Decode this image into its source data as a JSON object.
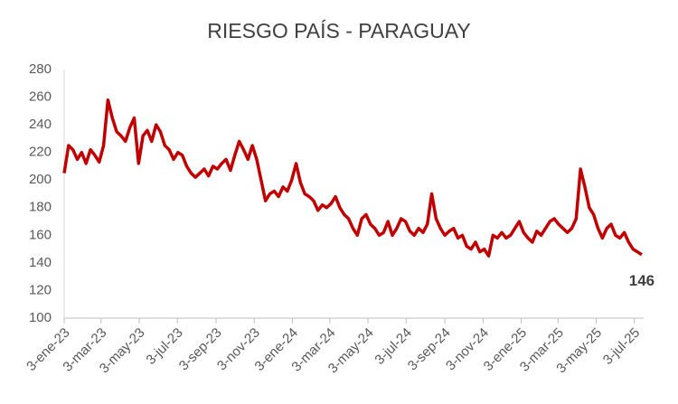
{
  "chart_data": {
    "type": "line",
    "title": "RIESGO PAÍS - PARAGUAY",
    "x": [
      "2023-01-03",
      "2023-01-10",
      "2023-01-17",
      "2023-01-24",
      "2023-01-31",
      "2023-02-07",
      "2023-02-14",
      "2023-02-21",
      "2023-02-28",
      "2023-03-07",
      "2023-03-14",
      "2023-03-21",
      "2023-03-28",
      "2023-04-04",
      "2023-04-11",
      "2023-04-18",
      "2023-04-25",
      "2023-05-02",
      "2023-05-09",
      "2023-05-16",
      "2023-05-23",
      "2023-05-30",
      "2023-06-06",
      "2023-06-13",
      "2023-06-20",
      "2023-06-27",
      "2023-07-04",
      "2023-07-11",
      "2023-07-18",
      "2023-07-25",
      "2023-08-01",
      "2023-08-08",
      "2023-08-15",
      "2023-08-22",
      "2023-08-29",
      "2023-09-05",
      "2023-09-12",
      "2023-09-19",
      "2023-09-26",
      "2023-10-03",
      "2023-10-10",
      "2023-10-17",
      "2023-10-24",
      "2023-10-31",
      "2023-11-07",
      "2023-11-14",
      "2023-11-21",
      "2023-11-28",
      "2023-12-05",
      "2023-12-12",
      "2023-12-19",
      "2023-12-26",
      "2024-01-02",
      "2024-01-09",
      "2024-01-16",
      "2024-01-23",
      "2024-01-30",
      "2024-02-06",
      "2024-02-13",
      "2024-02-20",
      "2024-02-27",
      "2024-03-05",
      "2024-03-12",
      "2024-03-19",
      "2024-03-26",
      "2024-04-02",
      "2024-04-09",
      "2024-04-16",
      "2024-04-23",
      "2024-04-30",
      "2024-05-07",
      "2024-05-14",
      "2024-05-21",
      "2024-05-28",
      "2024-06-04",
      "2024-06-11",
      "2024-06-18",
      "2024-06-25",
      "2024-07-02",
      "2024-07-09",
      "2024-07-16",
      "2024-07-23",
      "2024-07-30",
      "2024-08-06",
      "2024-08-13",
      "2024-08-20",
      "2024-08-27",
      "2024-09-03",
      "2024-09-10",
      "2024-09-17",
      "2024-09-24",
      "2024-10-01",
      "2024-10-08",
      "2024-10-15",
      "2024-10-22",
      "2024-10-29",
      "2024-11-05",
      "2024-11-12",
      "2024-11-19",
      "2024-11-26",
      "2024-12-03",
      "2024-12-10",
      "2024-12-17",
      "2024-12-24",
      "2024-12-31",
      "2025-01-07",
      "2025-01-14",
      "2025-01-21",
      "2025-01-28",
      "2025-02-04",
      "2025-02-11",
      "2025-02-18",
      "2025-02-25",
      "2025-03-04",
      "2025-03-11",
      "2025-03-18",
      "2025-03-25",
      "2025-04-01",
      "2025-04-08",
      "2025-04-15",
      "2025-04-22",
      "2025-04-29",
      "2025-05-06",
      "2025-05-13",
      "2025-05-20",
      "2025-05-27",
      "2025-06-03",
      "2025-06-10",
      "2025-06-17",
      "2025-06-24",
      "2025-07-01",
      "2025-07-08",
      "2025-07-15"
    ],
    "series": [
      {
        "color": "#c00000",
        "values": [
          205,
          225,
          222,
          215,
          220,
          212,
          222,
          218,
          213,
          225,
          258,
          245,
          235,
          232,
          228,
          238,
          245,
          212,
          232,
          236,
          228,
          240,
          235,
          225,
          222,
          215,
          220,
          218,
          210,
          205,
          202,
          205,
          208,
          203,
          210,
          208,
          212,
          215,
          207,
          218,
          228,
          222,
          215,
          225,
          215,
          200,
          185,
          190,
          192,
          188,
          195,
          192,
          200,
          212,
          198,
          190,
          188,
          185,
          178,
          182,
          180,
          183,
          188,
          180,
          175,
          172,
          165,
          160,
          172,
          175,
          168,
          165,
          160,
          162,
          170,
          160,
          165,
          172,
          170,
          163,
          160,
          165,
          162,
          168,
          190,
          172,
          165,
          160,
          163,
          165,
          158,
          160,
          152,
          150,
          155,
          148,
          150,
          145,
          160,
          158,
          162,
          158,
          160,
          165,
          170,
          162,
          158,
          155,
          163,
          160,
          165,
          170,
          172,
          168,
          165,
          162,
          165,
          172,
          208,
          195,
          180,
          175,
          165,
          158,
          165,
          168,
          160,
          158,
          162,
          155,
          150,
          148,
          146
        ]
      }
    ],
    "xlim": [
      "2023-01-03",
      "2025-07-18"
    ],
    "xticks": [
      {
        "value": "2023-01-03",
        "label": "3-ene-23"
      },
      {
        "value": "2023-03-03",
        "label": "3-mar-23"
      },
      {
        "value": "2023-05-03",
        "label": "3-may-23"
      },
      {
        "value": "2023-07-03",
        "label": "3-jul-23"
      },
      {
        "value": "2023-09-03",
        "label": "3-sep-23"
      },
      {
        "value": "2023-11-03",
        "label": "3-nov-23"
      },
      {
        "value": "2024-01-03",
        "label": "3-ene-24"
      },
      {
        "value": "2024-03-03",
        "label": "3-mar-24"
      },
      {
        "value": "2024-05-03",
        "label": "3-may-24"
      },
      {
        "value": "2024-07-03",
        "label": "3-jul-24"
      },
      {
        "value": "2024-09-03",
        "label": "3-sep-24"
      },
      {
        "value": "2024-11-03",
        "label": "3-nov-24"
      },
      {
        "value": "2025-01-03",
        "label": "3-ene-25"
      },
      {
        "value": "2025-03-03",
        "label": "3-mar-25"
      },
      {
        "value": "2025-05-03",
        "label": "3-may-25"
      },
      {
        "value": "2025-07-03",
        "label": "3-jul-25"
      }
    ],
    "ylim": [
      100,
      280
    ],
    "yticks": [
      100,
      120,
      140,
      160,
      180,
      200,
      220,
      240,
      260,
      280
    ],
    "grid": false
  }
}
